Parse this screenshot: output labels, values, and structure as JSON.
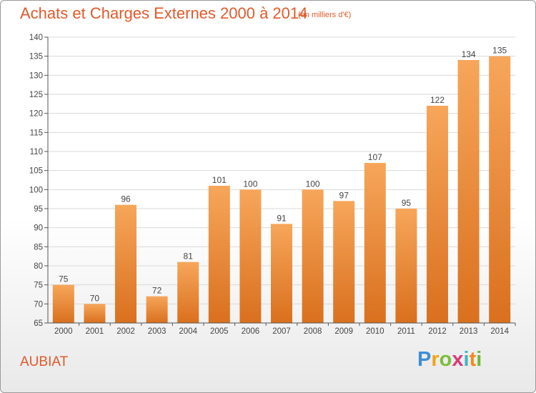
{
  "header": {
    "title": "Achats et Charges Externes 2000 à 2014",
    "subtitle": "(en milliers d'€)"
  },
  "footer": {
    "commune": "AUBIAT",
    "brand": "Proxiti",
    "brand_colors": [
      "#3c8fd6",
      "#f2a317",
      "#7bbf3a",
      "#d83a7a",
      "#3cb6c8",
      "#f28a1c",
      "#6fb83b"
    ]
  },
  "colors": {
    "title": "#e05a2b",
    "bar_top": "#f7a65a",
    "bar_bottom": "#d9701e",
    "grid": "#d9d9d9"
  },
  "chart_data": {
    "type": "bar",
    "title": "Achats et Charges Externes 2000 à 2014",
    "subtitle": "(en milliers d'€)",
    "categories": [
      "2000",
      "2001",
      "2002",
      "2003",
      "2004",
      "2005",
      "2006",
      "2007",
      "2008",
      "2009",
      "2010",
      "2011",
      "2012",
      "2013",
      "2014"
    ],
    "values": [
      75,
      70,
      96,
      72,
      81,
      101,
      100,
      91,
      100,
      97,
      107,
      95,
      122,
      134,
      135
    ],
    "xlabel": "",
    "ylabel": "",
    "ylim": [
      65,
      140
    ],
    "yticks": [
      65,
      70,
      75,
      80,
      85,
      90,
      95,
      100,
      105,
      110,
      115,
      120,
      125,
      130,
      135,
      140
    ],
    "grid": true,
    "data_labels": true
  }
}
